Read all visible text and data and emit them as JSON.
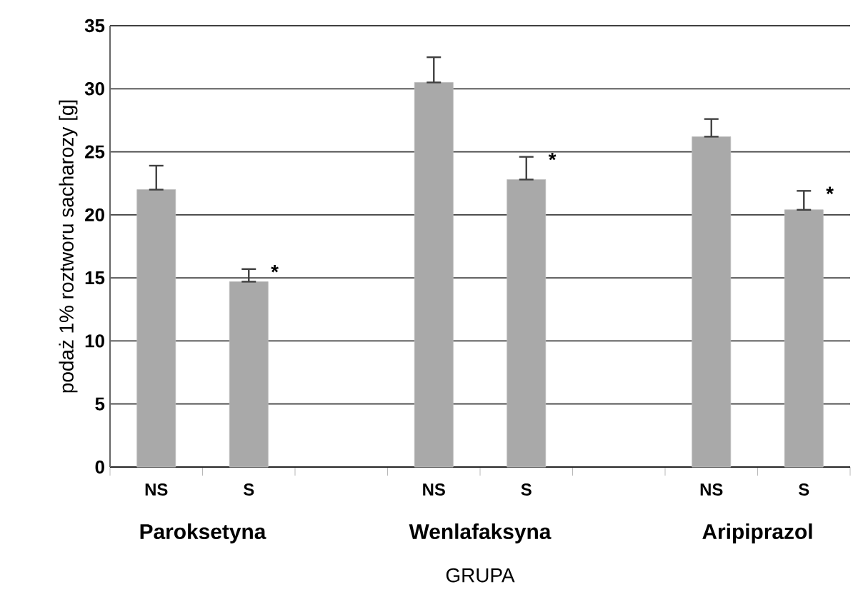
{
  "chart_data": {
    "type": "bar",
    "xlabel": "GRUPA",
    "ylabel": "podaż 1% roztworu sacharozy [g]",
    "categories": [
      "NS",
      "S",
      null,
      "NS",
      "S",
      null,
      "NS",
      "S"
    ],
    "values": [
      22,
      14.7,
      null,
      30.5,
      22.8,
      null,
      26.2,
      20.4
    ],
    "errors": [
      [
        22,
        23.9
      ],
      [
        14.7,
        15.7
      ],
      null,
      [
        30.5,
        32.5
      ],
      [
        22.8,
        24.6
      ],
      null,
      [
        26.2,
        27.6
      ],
      [
        20.4,
        21.9
      ]
    ],
    "color": "#a9a9a9",
    "ylim": [
      0,
      35
    ],
    "yticks": [
      0,
      5,
      10,
      15,
      20,
      25,
      30,
      35
    ],
    "grid": "y",
    "annotations": [
      "Paroksetyna",
      "Wenlafaksyna",
      "Aripiprazol",
      "*",
      "*",
      "*"
    ]
  }
}
